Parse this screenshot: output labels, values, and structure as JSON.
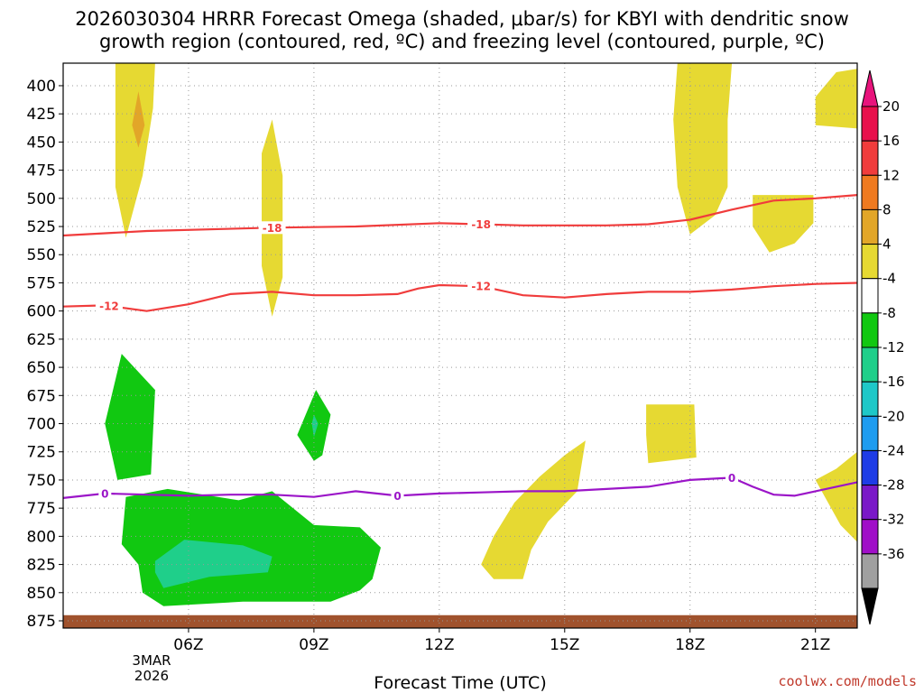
{
  "title": {
    "line1": "2026030304 HRRR Forecast Omega (shaded, μbar/s) for KBYI with dendritic snow",
    "line2": "growth region (contoured, red, ºC) and freezing level (contoured, purple, ºC)"
  },
  "credit": "coolwx.com/models",
  "chart_data": {
    "type": "heatmap",
    "title": "2026030304 HRRR Forecast Omega (shaded, μbar/s) for KBYI with dendritic snow growth region (contoured, red, ºC) and freezing level (contoured, purple, ºC)",
    "xlabel": "Forecast Time (UTC)",
    "ylabel": "",
    "x_range_hours_utc": [
      3,
      22
    ],
    "y_range_mb": [
      875,
      380
    ],
    "y_inverted": true,
    "x_ticks": [
      {
        "hour": 6,
        "label": "06Z"
      },
      {
        "hour": 9,
        "label": "09Z"
      },
      {
        "hour": 12,
        "label": "12Z"
      },
      {
        "hour": 15,
        "label": "15Z"
      },
      {
        "hour": 18,
        "label": "18Z"
      },
      {
        "hour": 21,
        "label": "21Z"
      }
    ],
    "date_label": [
      "3MAR",
      "2026"
    ],
    "y_ticks": [
      400,
      425,
      450,
      475,
      500,
      525,
      550,
      575,
      600,
      625,
      650,
      675,
      700,
      725,
      750,
      775,
      800,
      825,
      850,
      875
    ],
    "grid": true,
    "colorbar": {
      "levels": [
        20,
        16,
        12,
        8,
        4,
        -4,
        -8,
        -12,
        -16,
        -20,
        -24,
        -28,
        -32,
        -36
      ],
      "colors": [
        "#e8104c",
        "#f03c3c",
        "#ef7a20",
        "#e2a628",
        "#e6d932",
        "#ffffff",
        "#11c811",
        "#1fcf8a",
        "#1ec8c8",
        "#1e9cf0",
        "#1e3ce6",
        "#7a18c8",
        "#a00fc8",
        "#a0a0a0"
      ],
      "top_arrow_color": "#e8147c",
      "bottom_arrow_color": "#000000"
    },
    "shaded_regions": [
      {
        "name": "rising-column-05z",
        "value": 4,
        "color": "#e6d932",
        "points": [
          [
            4.6,
            380
          ],
          [
            5.2,
            380
          ],
          [
            5.15,
            420
          ],
          [
            4.9,
            480
          ],
          [
            4.5,
            535
          ],
          [
            4.25,
            490
          ],
          [
            4.25,
            380
          ]
        ]
      },
      {
        "name": "rising-core-05z",
        "value": 8,
        "color": "#e2a628",
        "points": [
          [
            4.8,
            405
          ],
          [
            4.95,
            435
          ],
          [
            4.8,
            455
          ],
          [
            4.65,
            435
          ]
        ]
      },
      {
        "name": "rising-column-08z",
        "value": 4,
        "color": "#e6d932",
        "points": [
          [
            8.0,
            430
          ],
          [
            8.25,
            480
          ],
          [
            8.25,
            570
          ],
          [
            8.0,
            605
          ],
          [
            7.75,
            560
          ],
          [
            7.75,
            460
          ]
        ]
      },
      {
        "name": "rising-column-18z",
        "value": 4,
        "color": "#e6d932",
        "points": [
          [
            17.7,
            380
          ],
          [
            19.0,
            380
          ],
          [
            18.9,
            430
          ],
          [
            18.9,
            490
          ],
          [
            18.6,
            515
          ],
          [
            18.0,
            532
          ],
          [
            17.7,
            490
          ],
          [
            17.6,
            430
          ]
        ]
      },
      {
        "name": "rising-patch-21z-upper",
        "value": 4,
        "color": "#e6d932",
        "points": [
          [
            21.0,
            410
          ],
          [
            21.5,
            388
          ],
          [
            22.0,
            385
          ],
          [
            22.0,
            438
          ],
          [
            21.0,
            435
          ]
        ]
      },
      {
        "name": "rising-patch-20z",
        "value": 4,
        "color": "#e6d932",
        "points": [
          [
            19.5,
            497
          ],
          [
            20.95,
            497
          ],
          [
            20.95,
            522
          ],
          [
            20.5,
            540
          ],
          [
            19.9,
            548
          ],
          [
            19.5,
            525
          ]
        ]
      },
      {
        "name": "rising-patch-18z-low",
        "value": 4,
        "color": "#e6d932",
        "points": [
          [
            16.95,
            683
          ],
          [
            18.1,
            683
          ],
          [
            18.15,
            730
          ],
          [
            17.0,
            735
          ],
          [
            16.95,
            710
          ]
        ]
      },
      {
        "name": "rising-patch-14z",
        "value": 4,
        "color": "#e6d932",
        "points": [
          [
            13.3,
            800
          ],
          [
            13.8,
            770
          ],
          [
            14.4,
            747
          ],
          [
            15.0,
            728
          ],
          [
            15.5,
            715
          ],
          [
            15.3,
            760
          ],
          [
            14.6,
            787
          ],
          [
            14.2,
            812
          ],
          [
            14.0,
            838
          ],
          [
            13.3,
            838
          ],
          [
            13.0,
            825
          ]
        ]
      },
      {
        "name": "rising-patch-21z-low",
        "value": 4,
        "color": "#e6d932",
        "points": [
          [
            21.5,
            740
          ],
          [
            22.0,
            725
          ],
          [
            22.0,
            805
          ],
          [
            21.6,
            790
          ],
          [
            21.0,
            750
          ]
        ]
      },
      {
        "name": "sinking-05z",
        "value": -4,
        "color": "#11c811",
        "points": [
          [
            4.0,
            700
          ],
          [
            4.4,
            638
          ],
          [
            5.2,
            670
          ],
          [
            5.1,
            745
          ],
          [
            4.3,
            750
          ]
        ]
      },
      {
        "name": "sinking-09z",
        "value": -4,
        "color": "#11c811",
        "points": [
          [
            9.05,
            670
          ],
          [
            9.4,
            692
          ],
          [
            9.2,
            728
          ],
          [
            9.0,
            733
          ],
          [
            8.6,
            710
          ]
        ]
      },
      {
        "name": "sinking-09z-core",
        "value": -8,
        "color": "#1fcf8a",
        "points": [
          [
            9.0,
            692
          ],
          [
            9.1,
            700
          ],
          [
            9.0,
            712
          ],
          [
            8.95,
            700
          ]
        ]
      },
      {
        "name": "sinking-lower-layer",
        "value": -4,
        "color": "#11c811",
        "points": [
          [
            4.5,
            765
          ],
          [
            5.5,
            758
          ],
          [
            7.2,
            768
          ],
          [
            8.0,
            760
          ],
          [
            9.0,
            790
          ],
          [
            10.1,
            792
          ],
          [
            10.6,
            810
          ],
          [
            10.4,
            838
          ],
          [
            10.1,
            848
          ],
          [
            9.4,
            858
          ],
          [
            7.3,
            858
          ],
          [
            5.4,
            862
          ],
          [
            4.9,
            850
          ],
          [
            4.8,
            825
          ],
          [
            4.4,
            807
          ]
        ]
      },
      {
        "name": "sinking-lower-core",
        "value": -8,
        "color": "#1fcf8a",
        "points": [
          [
            5.2,
            822
          ],
          [
            5.9,
            803
          ],
          [
            7.3,
            808
          ],
          [
            8.0,
            818
          ],
          [
            7.9,
            832
          ],
          [
            6.5,
            836
          ],
          [
            5.4,
            846
          ],
          [
            5.2,
            832
          ]
        ]
      }
    ],
    "terrain": {
      "name": "surface",
      "color": "#a0522d",
      "top_mb": 870
    },
    "contours": [
      {
        "name": "minus-18",
        "kind": "dendritic-snow-growth",
        "value": -18,
        "label": "-18",
        "color": "#f03c3c",
        "x": [
          3,
          5,
          8,
          10,
          12,
          14,
          16,
          17,
          18,
          19,
          20,
          21,
          22
        ],
        "y": [
          533,
          529,
          526,
          525,
          522,
          524,
          524,
          523,
          519,
          510,
          502,
          500,
          497
        ],
        "labels_at": [
          8.0,
          13.0
        ]
      },
      {
        "name": "minus-12",
        "kind": "dendritic-snow-growth",
        "value": -12,
        "label": "-12",
        "color": "#f03c3c",
        "x": [
          3,
          4,
          5,
          6,
          7,
          8,
          9,
          10,
          11,
          11.5,
          12,
          13,
          14,
          15,
          16,
          17,
          18,
          19,
          20,
          21,
          22
        ],
        "y": [
          596,
          595,
          600,
          594,
          585,
          583,
          586,
          586,
          585,
          580,
          577,
          578,
          586,
          588,
          585,
          583,
          583,
          581,
          578,
          576,
          575
        ],
        "labels_at": [
          4.1,
          13.0
        ]
      },
      {
        "name": "zero",
        "kind": "freezing-level",
        "value": 0,
        "label": "0",
        "color": "#9b15c8",
        "x": [
          3,
          4,
          5,
          6,
          7,
          8,
          9,
          10,
          11,
          12,
          13,
          14,
          15,
          16,
          17,
          18,
          19,
          19.5,
          20,
          20.5,
          21,
          22
        ],
        "y": [
          766,
          762,
          763,
          764,
          763,
          763,
          765,
          760,
          764,
          762,
          761,
          760,
          760,
          758,
          756,
          750,
          748,
          756,
          763,
          764,
          760,
          752
        ],
        "labels_at": [
          4.0,
          11.0,
          19.0
        ]
      }
    ]
  }
}
